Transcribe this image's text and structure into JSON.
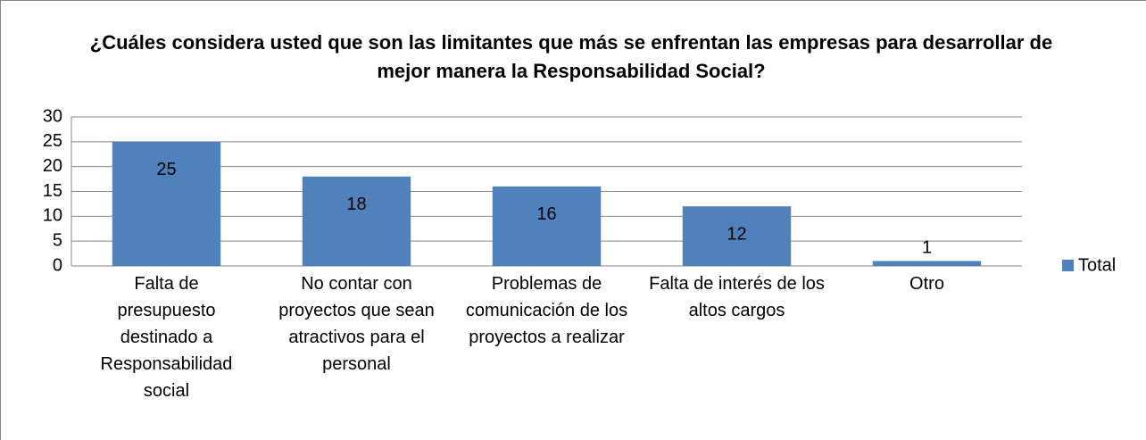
{
  "chart_data": {
    "type": "bar",
    "title": "¿Cuáles considera usted que son las limitantes que más se enfrentan las empresas para desarrollar de mejor manera la Responsabilidad Social?",
    "categories": [
      "Falta de presupuesto destinado a Responsabilidad social",
      "No contar con proyectos que sean atractivos para el personal",
      "Problemas de comunicación de los proyectos a realizar",
      "Falta de interés de los altos cargos",
      "Otro"
    ],
    "series": [
      {
        "name": "Total",
        "color": "#4f81bd",
        "values": [
          25,
          18,
          16,
          12,
          1
        ]
      }
    ],
    "ylim": [
      0,
      30
    ],
    "yticks": [
      0,
      5,
      10,
      15,
      20,
      25,
      30
    ],
    "grid": true,
    "legend": "right"
  }
}
